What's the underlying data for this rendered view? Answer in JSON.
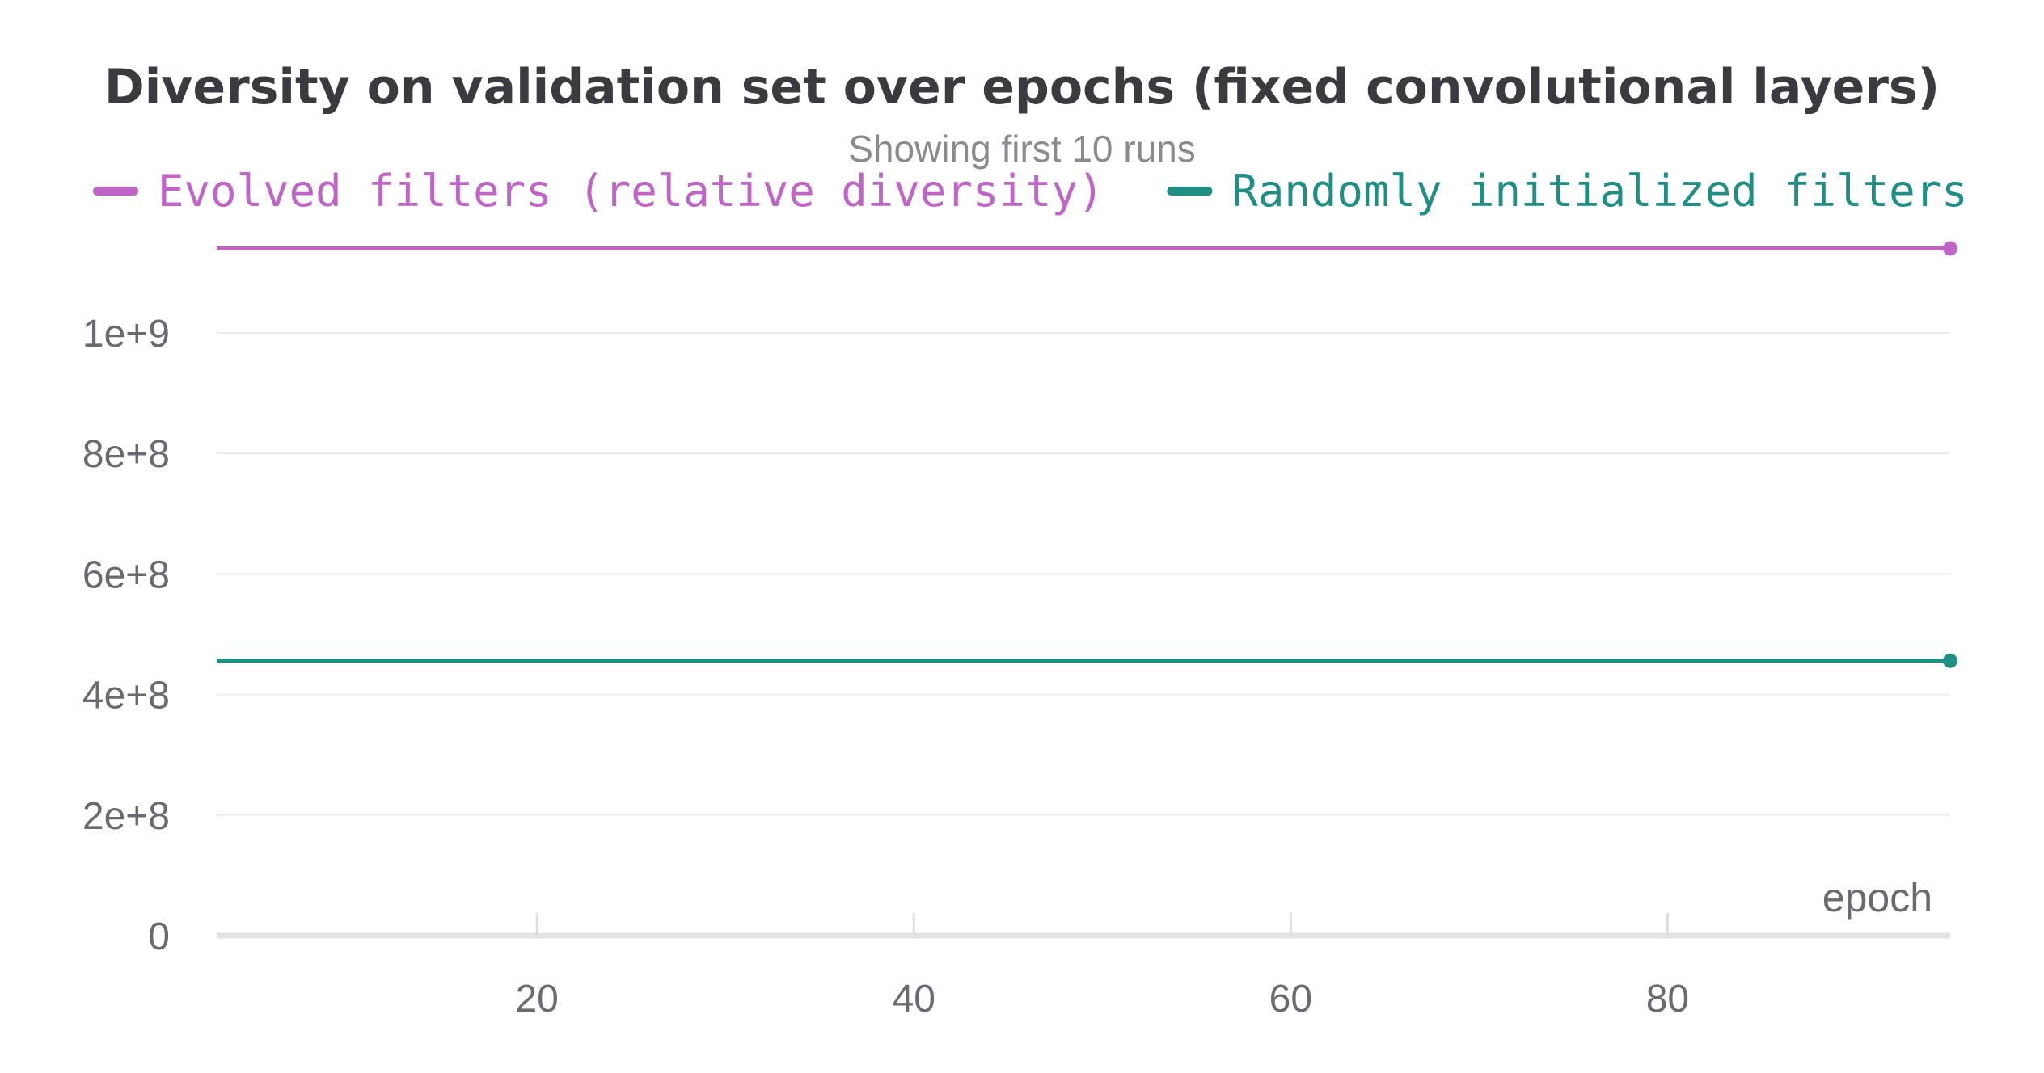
{
  "chart_data": {
    "type": "line",
    "title": "Diversity on validation set over epochs (fixed convolutional layers)",
    "subtitle": "Showing first 10 runs",
    "xlabel": "epoch",
    "ylabel": "",
    "xlim": [
      3,
      95
    ],
    "ylim": [
      0,
      1150000000
    ],
    "x_ticks": [
      20,
      40,
      60,
      80
    ],
    "x_tick_labels": [
      "20",
      "40",
      "60",
      "80"
    ],
    "y_ticks": [
      0,
      200000000,
      400000000,
      600000000,
      800000000,
      1000000000
    ],
    "y_tick_labels": [
      "0",
      "2e+8",
      "4e+8",
      "6e+8",
      "8e+8",
      "1e+9"
    ],
    "grid": true,
    "legend_position": "top",
    "series": [
      {
        "name": "Evolved filters (relative diversity)",
        "color": "#c064c8",
        "x": [
          3,
          95
        ],
        "values": [
          1140000000,
          1140000000
        ]
      },
      {
        "name": "Randomly initialized filters",
        "color": "#1f8f84",
        "x": [
          3,
          95
        ],
        "values": [
          456000000,
          456000000
        ]
      }
    ]
  }
}
